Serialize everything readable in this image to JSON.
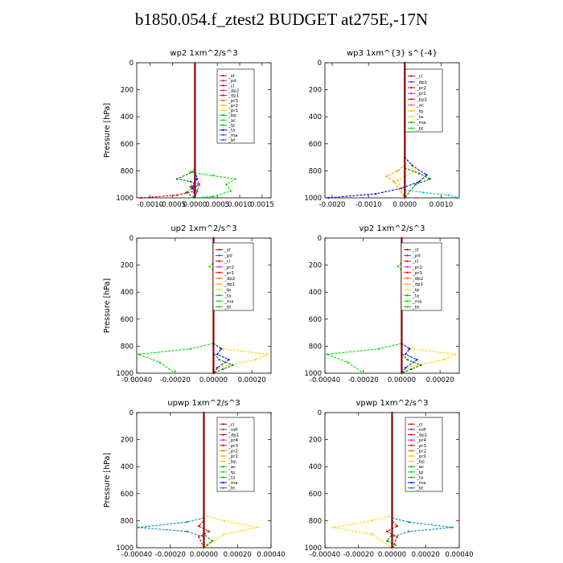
{
  "figure_title": "b1850.054.f_ztest2  BUDGET at275E,-17N",
  "chart_data": [
    {
      "type": "line",
      "title": "wp2   1xm^2/s^3",
      "ylabel": "Pressure [hPa]",
      "ylim": [
        1000,
        0
      ],
      "xlim": [
        -0.0013,
        0.0017
      ],
      "xticks": [
        -0.001,
        -0.0005,
        0.0,
        0.0005,
        0.001,
        0.0015
      ],
      "xtick_labels": [
        "-0.0010",
        "-0.0005",
        "0.0000",
        "0.0005",
        "0.0010",
        "0.0015"
      ],
      "yticks": [
        0,
        200,
        400,
        600,
        800,
        1000
      ],
      "legend": [
        "_sf",
        "_pd",
        "_cl",
        "_dp2",
        "_dp1",
        "_pr3",
        "_pr2",
        "_pr1",
        "_bp",
        "_ac",
        "_tp",
        "_ta",
        "_ma",
        "_bt"
      ],
      "series": [
        {
          "name": "_pr1",
          "color": "#00e000",
          "x": [
            0,
            0,
            -0.0001,
            0.0004,
            0.0009,
            0.0007,
            0.0008,
            0.0004,
            0
          ],
          "y": [
            0,
            780,
            810,
            835,
            860,
            900,
            950,
            990,
            1000
          ]
        },
        {
          "name": "_bp",
          "color": "#008000",
          "x": [
            0,
            0,
            -0.0004,
            -0.0001,
            0.0001,
            -0.0002,
            0
          ],
          "y": [
            0,
            800,
            860,
            880,
            900,
            960,
            1000
          ]
        },
        {
          "name": "_dp1",
          "color": "#d00000",
          "x": [
            0,
            0,
            -0.0001,
            0,
            -0.0004,
            -0.0012
          ],
          "y": [
            0,
            880,
            920,
            950,
            980,
            1000
          ]
        },
        {
          "name": "_cl",
          "color": "#ff00ff",
          "x": [
            0,
            0,
            0.0001,
            5e-05,
            0
          ],
          "y": [
            0,
            850,
            900,
            950,
            1000
          ]
        },
        {
          "name": "_tp",
          "color": "#0000ff",
          "x": [
            0,
            0,
            5e-05,
            -5e-05,
            0
          ],
          "y": [
            0,
            800,
            860,
            920,
            1000
          ]
        },
        {
          "name": "_bt",
          "color": "#00c8c8",
          "x": [
            0,
            0,
            3e-05,
            0
          ],
          "y": [
            0,
            850,
            950,
            1000
          ]
        }
      ]
    },
    {
      "type": "line",
      "title": "wp3   1xm^{3} s^{-4}",
      "ylabel": "",
      "ylim": [
        1000,
        0
      ],
      "xlim": [
        -0.0022,
        0.0015
      ],
      "xticks": [
        -0.002,
        -0.001,
        0.0,
        0.001
      ],
      "xtick_labels": [
        "-0.0020",
        "-0.0010",
        "0.0000",
        "0.0010"
      ],
      "yticks": [
        0,
        200,
        400,
        600,
        800,
        1000
      ],
      "legend": [
        "_cl",
        "_dp1",
        "_pr2",
        "_pr1",
        "_bp1",
        "_ac",
        "_tp",
        "_ta",
        "_ma",
        "_bt"
      ],
      "series": [
        {
          "name": "_ta",
          "color": "#0000ff",
          "x": [
            0,
            0,
            0.0002,
            0.0006,
            0.0004,
            -0.0001,
            -0.0008,
            -0.0021
          ],
          "y": [
            0,
            700,
            760,
            830,
            880,
            930,
            970,
            1000
          ]
        },
        {
          "name": "_pr2",
          "color": "#ff9900",
          "x": [
            0,
            0,
            -0.0002,
            -0.0005,
            -0.0003,
            0
          ],
          "y": [
            0,
            760,
            800,
            840,
            880,
            1000
          ]
        },
        {
          "name": "_bp1",
          "color": "#008000",
          "x": [
            0,
            0,
            0.0004,
            0.0007,
            0.0003,
            0
          ],
          "y": [
            0,
            780,
            820,
            860,
            900,
            1000
          ]
        },
        {
          "name": "_pr1",
          "color": "#ffd700",
          "x": [
            0,
            0,
            0.0003,
            -0.0002,
            0
          ],
          "y": [
            0,
            750,
            800,
            870,
            1000
          ]
        },
        {
          "name": "_bt",
          "color": "#00c8c8",
          "x": [
            0,
            0,
            0.0005,
            0.0012,
            0.0015
          ],
          "y": [
            0,
            940,
            960,
            980,
            1000
          ]
        },
        {
          "name": "_cl",
          "color": "#d00000",
          "x": [
            0,
            0
          ],
          "y": [
            0,
            1000
          ]
        }
      ]
    },
    {
      "type": "line",
      "title": "up2   1xm^2/s^3",
      "ylabel": "Pressure [hPa]",
      "ylim": [
        1000,
        0
      ],
      "xlim": [
        -0.0004,
        0.0003
      ],
      "xticks": [
        -0.0004,
        -0.0002,
        0.0,
        0.0002
      ],
      "xtick_labels": [
        "-0.00040",
        "-0.00020",
        "0.00000",
        "0.00020"
      ],
      "yticks": [
        0,
        200,
        400,
        600,
        800,
        1000
      ],
      "legend": [
        "_sf",
        "_pd",
        "_cl",
        "_pr2",
        "_pr1",
        "_dp2",
        "_dp1",
        "_tp",
        "_ta",
        "_ma",
        "_bt"
      ],
      "series": [
        {
          "name": "_dp2",
          "color": "#00e000",
          "x": [
            0,
            0,
            -2e-05,
            0,
            0,
            -0.00012,
            -0.00039,
            -0.00028,
            -0.0002
          ],
          "y": [
            0,
            180,
            210,
            240,
            780,
            820,
            860,
            920,
            1000
          ]
        },
        {
          "name": "_pr2",
          "color": "#ffd700",
          "x": [
            0,
            0,
            5e-05,
            0.00028,
            0.00022,
            5e-05,
            0
          ],
          "y": [
            0,
            780,
            820,
            860,
            900,
            950,
            1000
          ]
        },
        {
          "name": "_tp",
          "color": "#0000ff",
          "x": [
            0,
            0,
            4e-05,
            2e-05,
            8e-05,
            2e-05,
            0
          ],
          "y": [
            0,
            780,
            820,
            860,
            900,
            960,
            1000
          ]
        },
        {
          "name": "_dp1",
          "color": "#008000",
          "x": [
            0,
            0,
            3e-05,
            0.0001,
            5e-05,
            0
          ],
          "y": [
            0,
            850,
            900,
            940,
            970,
            1000
          ]
        },
        {
          "name": "_cl",
          "color": "#d00000",
          "x": [
            0,
            0
          ],
          "y": [
            0,
            1000
          ]
        }
      ]
    },
    {
      "type": "line",
      "title": "vp2   1xm^2/s^3",
      "ylabel": "",
      "ylim": [
        1000,
        0
      ],
      "xlim": [
        -0.0004,
        0.0003
      ],
      "xticks": [
        -0.0004,
        -0.0002,
        0.0,
        0.0002
      ],
      "xtick_labels": [
        "-0.00040",
        "-0.00020",
        "0.00000",
        "0.00020"
      ],
      "yticks": [
        0,
        200,
        400,
        600,
        800,
        1000
      ],
      "legend": [
        "_sf",
        "_pd",
        "_cl",
        "_pr2",
        "_pr1",
        "_dp2",
        "_dp1",
        "_tp",
        "_ta",
        "_ma",
        "_bt"
      ],
      "series": [
        {
          "name": "_dp2",
          "color": "#00e000",
          "x": [
            0,
            0,
            -2e-05,
            0,
            0,
            -0.00012,
            -0.00039,
            -0.00028,
            -0.0002
          ],
          "y": [
            0,
            180,
            210,
            240,
            780,
            820,
            860,
            920,
            1000
          ]
        },
        {
          "name": "_pr2",
          "color": "#ffd700",
          "x": [
            0,
            0,
            5e-05,
            0.00028,
            0.00022,
            5e-05,
            0
          ],
          "y": [
            0,
            780,
            820,
            860,
            900,
            950,
            1000
          ]
        },
        {
          "name": "_tp",
          "color": "#0000ff",
          "x": [
            0,
            0,
            4e-05,
            2e-05,
            8e-05,
            2e-05,
            0
          ],
          "y": [
            0,
            780,
            820,
            860,
            900,
            960,
            1000
          ]
        },
        {
          "name": "_dp1",
          "color": "#008000",
          "x": [
            0,
            0,
            3e-05,
            0.0001,
            5e-05,
            0
          ],
          "y": [
            0,
            850,
            900,
            940,
            970,
            1000
          ]
        },
        {
          "name": "_cl",
          "color": "#d00000",
          "x": [
            0,
            0
          ],
          "y": [
            0,
            1000
          ]
        }
      ]
    },
    {
      "type": "line",
      "title": "upwp   1xm^2/s^3",
      "ylabel": "Pressure [hPa]",
      "ylim": [
        1000,
        0
      ],
      "xlim": [
        -0.0004,
        0.0004
      ],
      "xticks": [
        -0.0004,
        -0.0002,
        0.0,
        0.0002,
        0.0004
      ],
      "xtick_labels": [
        "-0.00040",
        "-0.00020",
        "0.00000",
        "0.00020",
        "0.00040"
      ],
      "yticks": [
        0,
        200,
        400,
        600,
        800,
        1000
      ],
      "legend": [
        "_cl",
        "_mfl",
        "_dp1",
        "_pr4",
        "_pr3",
        "_pr2",
        "_pr1",
        "_bp",
        "_ac",
        "_tp",
        "_ta",
        "_ma",
        "_bt"
      ],
      "series": [
        {
          "name": "_ta",
          "color": "#0090b0",
          "x": [
            0,
            0,
            -0.0001,
            -0.00039,
            -0.0001,
            0,
            0
          ],
          "y": [
            0,
            780,
            810,
            850,
            880,
            920,
            1000
          ]
        },
        {
          "name": "_pr1",
          "color": "#ffd700",
          "x": [
            0,
            0,
            0.00012,
            0.00032,
            0.00012,
            0
          ],
          "y": [
            0,
            760,
            800,
            850,
            900,
            1000
          ]
        },
        {
          "name": "_dp1",
          "color": "#d00000",
          "x": [
            0,
            0,
            -3e-05,
            3e-05,
            -3e-05,
            0
          ],
          "y": [
            0,
            800,
            840,
            880,
            920,
            1000
          ]
        },
        {
          "name": "_bp",
          "color": "#00a000",
          "x": [
            0,
            0,
            5e-05,
            2e-05,
            0
          ],
          "y": [
            0,
            900,
            950,
            980,
            1000
          ]
        },
        {
          "name": "_cl",
          "color": "#7030a0",
          "x": [
            0,
            0
          ],
          "y": [
            0,
            1000
          ]
        }
      ]
    },
    {
      "type": "line",
      "title": "vpwp   1xm^2/s^3",
      "ylabel": "",
      "ylim": [
        1000,
        0
      ],
      "xlim": [
        -0.0004,
        0.0004
      ],
      "xticks": [
        -0.0004,
        -0.0002,
        0.0,
        0.0002,
        0.0004
      ],
      "xtick_labels": [
        "-0.00040",
        "-0.00020",
        "0.00000",
        "0.00020",
        "0.00040"
      ],
      "yticks": [
        0,
        200,
        400,
        600,
        800,
        1000
      ],
      "legend": [
        "_cl",
        "_mfl",
        "_dp1",
        "_pr4",
        "_pr3",
        "_pr2",
        "_pr1",
        "_bp",
        "_ac",
        "_tp",
        "_ta",
        "_ma",
        "_bt"
      ],
      "series": [
        {
          "name": "_ta",
          "color": "#0090b0",
          "x": [
            0,
            0,
            0.0001,
            0.00036,
            0.0001,
            0,
            0
          ],
          "y": [
            0,
            780,
            810,
            850,
            880,
            920,
            1000
          ]
        },
        {
          "name": "_pr1",
          "color": "#ffd700",
          "x": [
            0,
            0,
            -0.00012,
            -0.00035,
            -0.00012,
            0
          ],
          "y": [
            0,
            760,
            800,
            850,
            900,
            1000
          ]
        },
        {
          "name": "_dp1",
          "color": "#d00000",
          "x": [
            0,
            0,
            3e-05,
            -3e-05,
            3e-05,
            0
          ],
          "y": [
            0,
            800,
            840,
            880,
            920,
            1000
          ]
        },
        {
          "name": "_bp",
          "color": "#00a000",
          "x": [
            0,
            0,
            -3e-05,
            2e-05,
            0
          ],
          "y": [
            0,
            900,
            950,
            980,
            1000
          ]
        },
        {
          "name": "_cl",
          "color": "#7030a0",
          "x": [
            0,
            0
          ],
          "y": [
            0,
            1000
          ]
        }
      ]
    }
  ]
}
